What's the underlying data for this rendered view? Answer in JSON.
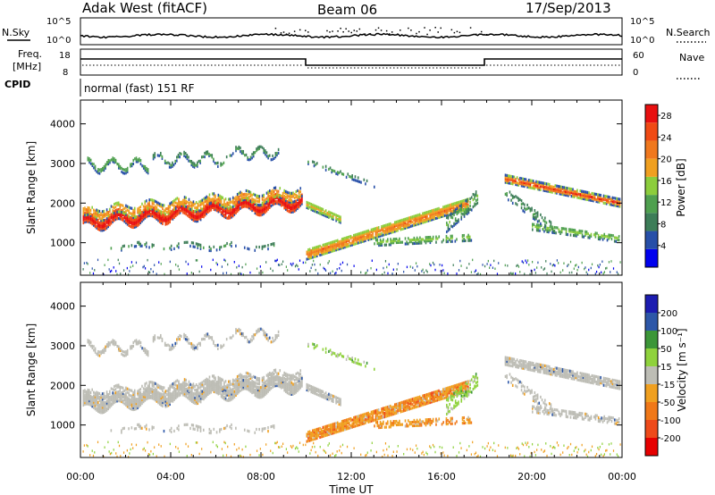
{
  "header": {
    "radar": "Adak West (fitACF)",
    "beam": "Beam 06",
    "date": "17/Sep/2013"
  },
  "strip_labels": {
    "nsky": "N.Sky",
    "nsearch": "N.Search",
    "freq_top": "Freq.",
    "freq_unit": "[MHz]",
    "nave": "Nave",
    "cpid": "CPID",
    "cpid_text": "normal (fast) 151 RF"
  },
  "noise_axis": {
    "left_ticks": [
      "10^5",
      "10^0"
    ],
    "right_ticks": [
      "10^5",
      "10^0"
    ]
  },
  "freq_axis": {
    "left_ticks": [
      "18",
      "8"
    ],
    "right_ticks": [
      "60",
      "0"
    ]
  },
  "colors": {
    "power_scale": [
      "#0000ee",
      "#274fa8",
      "#3d7d58",
      "#4fa04f",
      "#8ccd3c",
      "#f0a020",
      "#f0781e",
      "#f04a14",
      "#e81010"
    ],
    "velocity_scale": [
      "#e60000",
      "#ee4a1a",
      "#f07818",
      "#f0a020",
      "#bdbdb5",
      "#8fd23c",
      "#3c9638",
      "#2d57a8",
      "#1c1cb0"
    ]
  },
  "chart_data": [
    {
      "type": "heatmap",
      "panel": "power",
      "ylabel": "Slant Range [km]",
      "ylim": [
        180,
        4600
      ],
      "y_ticks": [
        "4000",
        "3000",
        "2000",
        "1000"
      ],
      "x_ticks": [
        "00:00",
        "04:00",
        "08:00",
        "12:00",
        "16:00",
        "20:00",
        "00:00"
      ],
      "colorbar_label": "Power [dB]",
      "colorbar_ticks": [
        "28",
        "24",
        "20",
        "16",
        "12",
        "8",
        "4"
      ],
      "colorbar_range": [
        0,
        30
      ]
    },
    {
      "type": "heatmap",
      "panel": "velocity",
      "ylabel": "Slant Range [km]",
      "xlabel": "Time UT",
      "ylim": [
        180,
        4600
      ],
      "y_ticks": [
        "4000",
        "3000",
        "2000",
        "1000"
      ],
      "x_ticks": [
        "00:00",
        "04:00",
        "08:00",
        "12:00",
        "16:00",
        "20:00",
        "00:00"
      ],
      "colorbar_label": "Velocity [m s⁻¹]",
      "colorbar_ticks": [
        "200",
        "100",
        "50",
        "15",
        "-15",
        "-50",
        "-100",
        "-200"
      ]
    }
  ]
}
